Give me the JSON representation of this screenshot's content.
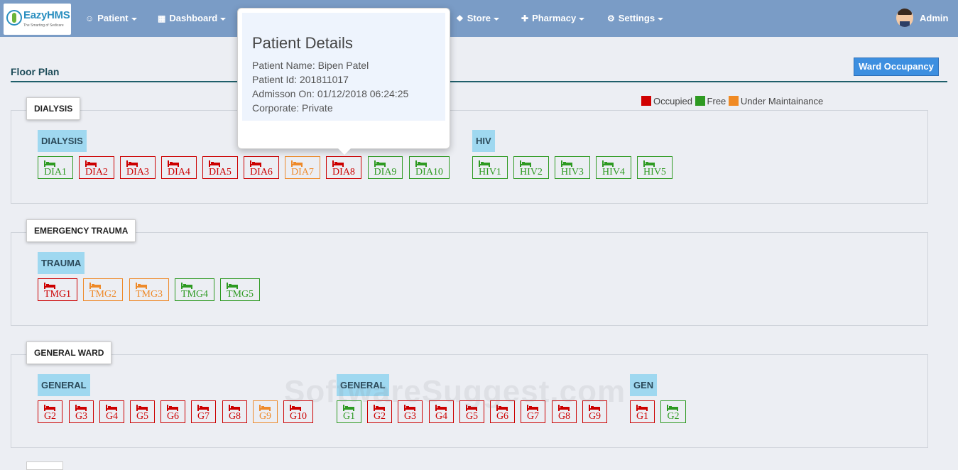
{
  "nav": {
    "logo_text": "EazyHMS",
    "logo_tagline": "The Smarting of Sedicare",
    "items": [
      {
        "label": "Patient",
        "icon": "user-icon"
      },
      {
        "label": "Dashboard",
        "icon": "grid-icon"
      },
      {
        "label": "Store",
        "icon": "tag-icon"
      },
      {
        "label": "Pharmacy",
        "icon": "medkit-icon"
      },
      {
        "label": "Settings",
        "icon": "gear-icon"
      }
    ],
    "user": "Admin"
  },
  "page": {
    "title": "Floor Plan",
    "ward_button": "Ward Occupancy"
  },
  "legend": [
    {
      "label": "Occupied",
      "color": "#d00000"
    },
    {
      "label": "Free",
      "color": "#2e9a22"
    },
    {
      "label": "Under Maintainance",
      "color": "#f08a24"
    }
  ],
  "sections": [
    {
      "name": "DIALYSIS",
      "groups": [
        {
          "label": "DIALYSIS",
          "beds": [
            {
              "id": "DIA1",
              "status": "free"
            },
            {
              "id": "DIA2",
              "status": "occupied"
            },
            {
              "id": "DIA3",
              "status": "occupied"
            },
            {
              "id": "DIA4",
              "status": "occupied"
            },
            {
              "id": "DIA5",
              "status": "occupied"
            },
            {
              "id": "DIA6",
              "status": "occupied"
            },
            {
              "id": "DIA7",
              "status": "maintenance"
            },
            {
              "id": "DIA8",
              "status": "occupied"
            },
            {
              "id": "DIA9",
              "status": "free"
            },
            {
              "id": "DIA10",
              "status": "free"
            }
          ]
        },
        {
          "label": "HIV",
          "beds": [
            {
              "id": "HIV1",
              "status": "free"
            },
            {
              "id": "HIV2",
              "status": "free"
            },
            {
              "id": "HIV3",
              "status": "free"
            },
            {
              "id": "HIV4",
              "status": "free"
            },
            {
              "id": "HIV5",
              "status": "free"
            }
          ]
        }
      ]
    },
    {
      "name": "EMERGENCY TRAUMA",
      "groups": [
        {
          "label": "TRAUMA",
          "beds": [
            {
              "id": "TMG1",
              "status": "occupied"
            },
            {
              "id": "TMG2",
              "status": "maintenance"
            },
            {
              "id": "TMG3",
              "status": "maintenance"
            },
            {
              "id": "TMG4",
              "status": "free"
            },
            {
              "id": "TMG5",
              "status": "free"
            }
          ]
        }
      ]
    },
    {
      "name": "GENERAL WARD",
      "groups": [
        {
          "label": "GENERAL",
          "beds": [
            {
              "id": "G2",
              "status": "occupied"
            },
            {
              "id": "G3",
              "status": "occupied"
            },
            {
              "id": "G4",
              "status": "occupied"
            },
            {
              "id": "G5",
              "status": "occupied"
            },
            {
              "id": "G6",
              "status": "occupied"
            },
            {
              "id": "G7",
              "status": "occupied"
            },
            {
              "id": "G8",
              "status": "occupied"
            },
            {
              "id": "G9",
              "status": "maintenance"
            },
            {
              "id": "G10",
              "status": "occupied"
            }
          ]
        },
        {
          "label": "GENERAL",
          "beds": [
            {
              "id": "G1",
              "status": "free"
            },
            {
              "id": "G2",
              "status": "occupied"
            },
            {
              "id": "G3",
              "status": "occupied"
            },
            {
              "id": "G4",
              "status": "occupied"
            },
            {
              "id": "G5",
              "status": "occupied"
            },
            {
              "id": "G6",
              "status": "occupied"
            },
            {
              "id": "G7",
              "status": "occupied"
            },
            {
              "id": "G8",
              "status": "occupied"
            },
            {
              "id": "G9",
              "status": "occupied"
            }
          ]
        },
        {
          "label": "GEN",
          "beds": [
            {
              "id": "G1",
              "status": "occupied"
            },
            {
              "id": "G2",
              "status": "free"
            }
          ]
        }
      ]
    }
  ],
  "popover": {
    "title": "Patient Details",
    "lines": [
      "Patient Name: Bipen Patel",
      "Patient Id: 201811017",
      "Admisson On: 01/12/2018 06:24:25",
      "Corporate: Private"
    ]
  },
  "watermark": "SoftwareSuggest.com"
}
